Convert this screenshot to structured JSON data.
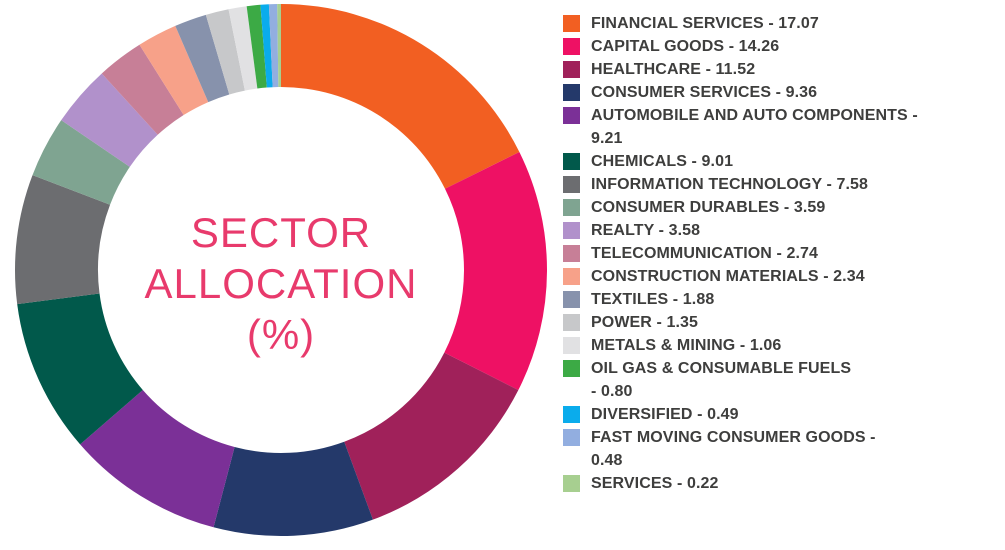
{
  "page": {
    "background": "#FFFFFF"
  },
  "chart_data": {
    "type": "pie",
    "subtype": "donut",
    "title": "SECTOR ALLOCATION (%)",
    "center_label": "SECTOR\nALLOCATION\n(%)",
    "title_color": "#E83A6C",
    "start_at": "top",
    "direction": "clockwise",
    "inner_radius_ratio": 0.688,
    "legend_position": "right",
    "values_sum": 96.54,
    "series": [
      {
        "name": "FINANCIAL SERVICES",
        "value": 17.07,
        "color": "#F25F22"
      },
      {
        "name": "CAPITAL GOODS",
        "value": 14.26,
        "color": "#EE1164"
      },
      {
        "name": "HEALTHCARE",
        "value": 11.52,
        "color": "#A0215A"
      },
      {
        "name": "CONSUMER SERVICES",
        "value": 9.36,
        "color": "#24396A"
      },
      {
        "name": "AUTOMOBILE AND AUTO COMPONENTS",
        "value": 9.21,
        "color": "#7B3097"
      },
      {
        "name": "CHEMICALS",
        "value": 9.01,
        "color": "#01594B"
      },
      {
        "name": "INFORMATION TECHNOLOGY",
        "value": 7.58,
        "color": "#6C6D70"
      },
      {
        "name": "CONSUMER DURABLES",
        "value": 3.59,
        "color": "#7FA491"
      },
      {
        "name": "REALTY",
        "value": 3.58,
        "color": "#B191CB"
      },
      {
        "name": "TELECOMMUNICATION",
        "value": 2.74,
        "color": "#C77F97"
      },
      {
        "name": "CONSTRUCTION MATERIALS",
        "value": 2.34,
        "color": "#F7A189"
      },
      {
        "name": "TEXTILES",
        "value": 1.88,
        "color": "#8792AC"
      },
      {
        "name": "POWER",
        "value": 1.35,
        "color": "#C7C8CA"
      },
      {
        "name": "METALS & MINING",
        "value": 1.06,
        "color": "#E1E1E3"
      },
      {
        "name": "OIL GAS & CONSUMABLE FUELS",
        "value": 0.8,
        "color": "#3CAA45"
      },
      {
        "name": "DIVERSIFIED",
        "value": 0.49,
        "color": "#0AACEC"
      },
      {
        "name": "FAST MOVING CONSUMER GOODS",
        "value": 0.48,
        "color": "#92AEE0"
      },
      {
        "name": "SERVICES",
        "value": 0.22,
        "color": "#A7CF90"
      }
    ]
  },
  "legend": {
    "text_color": "#3E3E3D",
    "items": [
      {
        "text": "FINANCIAL SERVICES - 17.07"
      },
      {
        "text": "CAPITAL GOODS - 14.26"
      },
      {
        "text": "HEALTHCARE - 11.52"
      },
      {
        "text": "CONSUMER SERVICES - 9.36"
      },
      {
        "text": "AUTOMOBILE AND AUTO COMPONENTS -\n9.21"
      },
      {
        "text": "CHEMICALS - 9.01"
      },
      {
        "text": "INFORMATION TECHNOLOGY - 7.58"
      },
      {
        "text": "CONSUMER DURABLES - 3.59"
      },
      {
        "text": "REALTY - 3.58"
      },
      {
        "text": "TELECOMMUNICATION - 2.74"
      },
      {
        "text": "CONSTRUCTION MATERIALS - 2.34"
      },
      {
        "text": "TEXTILES - 1.88"
      },
      {
        "text": "POWER - 1.35"
      },
      {
        "text": "METALS & MINING - 1.06"
      },
      {
        "text": "OIL GAS & CONSUMABLE FUELS\n- 0.80"
      },
      {
        "text": "DIVERSIFIED - 0.49"
      },
      {
        "text": "FAST MOVING CONSUMER GOODS -\n0.48"
      },
      {
        "text": "SERVICES - 0.22"
      }
    ]
  }
}
